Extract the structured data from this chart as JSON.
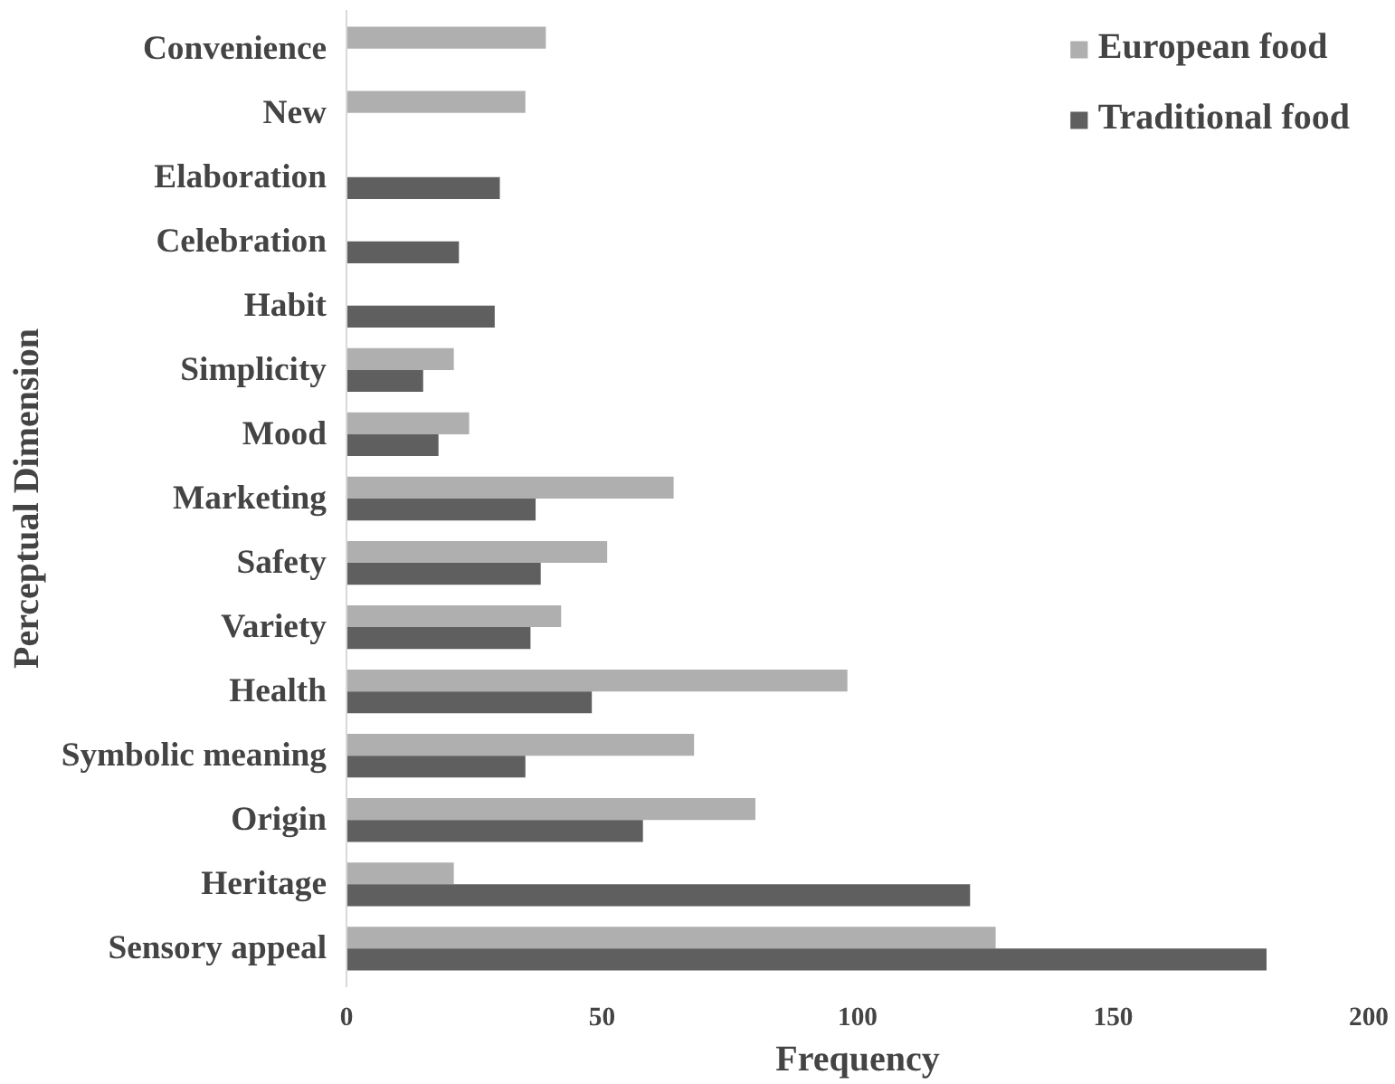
{
  "chart_data": {
    "type": "bar",
    "orientation": "horizontal",
    "xlabel": "Frequency",
    "ylabel": "Perceptual Dimension",
    "categories": [
      "Convenience",
      "New",
      "Elaboration",
      "Celebration",
      "Habit",
      "Simplicity",
      "Mood",
      "Marketing",
      "Safety",
      "Variety",
      "Health",
      "Symbolic meaning",
      "Origin",
      "Heritage",
      "Sensory appeal"
    ],
    "series": [
      {
        "name": "European food",
        "color": "#afafaf",
        "values": [
          39,
          35,
          null,
          null,
          null,
          21,
          24,
          64,
          51,
          42,
          98,
          68,
          80,
          21,
          127
        ]
      },
      {
        "name": "Traditional food",
        "color": "#5f5f5f",
        "values": [
          null,
          null,
          30,
          22,
          29,
          15,
          18,
          37,
          38,
          36,
          48,
          35,
          58,
          122,
          180
        ]
      }
    ],
    "xlim": [
      0,
      200
    ],
    "xticks": [
      0,
      50,
      100,
      150,
      200
    ],
    "grid": false,
    "legend": "top right"
  }
}
